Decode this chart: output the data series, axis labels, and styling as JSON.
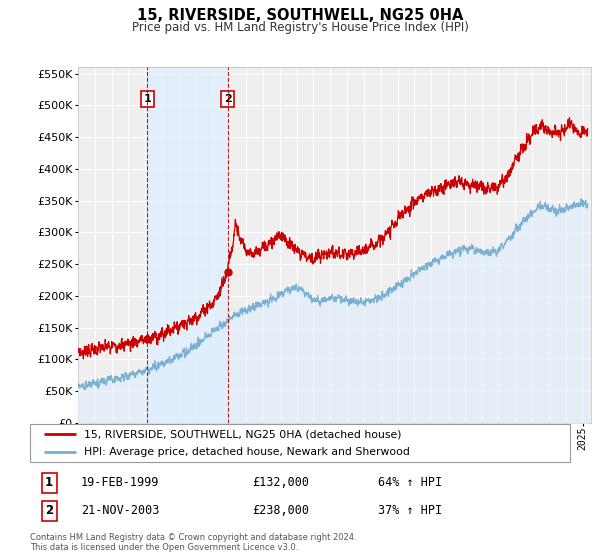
{
  "title": "15, RIVERSIDE, SOUTHWELL, NG25 0HA",
  "subtitle": "Price paid vs. HM Land Registry's House Price Index (HPI)",
  "legend_line1": "15, RIVERSIDE, SOUTHWELL, NG25 0HA (detached house)",
  "legend_line2": "HPI: Average price, detached house, Newark and Sherwood",
  "annotation1_label": "1",
  "annotation1_date": "19-FEB-1999",
  "annotation1_price": "£132,000",
  "annotation1_hpi": "64% ↑ HPI",
  "annotation1_value": 132000,
  "annotation1_year": 1999.13,
  "annotation2_label": "2",
  "annotation2_date": "21-NOV-2003",
  "annotation2_price": "£238,000",
  "annotation2_hpi": "37% ↑ HPI",
  "annotation2_value": 238000,
  "annotation2_year": 2003.89,
  "footer_line1": "Contains HM Land Registry data © Crown copyright and database right 2024.",
  "footer_line2": "This data is licensed under the Open Government Licence v3.0.",
  "price_line_color": "#cc0000",
  "hpi_line_color": "#7ab0d4",
  "hpi_fill_color": "#ddeeff",
  "background_color": "#ffffff",
  "plot_bg_color": "#efefef",
  "grid_color": "#ffffff",
  "shade_color": "#ddeeff",
  "ylim_max": 560000,
  "ylim_min": 0,
  "xlim_min": 1995.0,
  "xlim_max": 2025.5,
  "ann_box_color": "#cc0000"
}
